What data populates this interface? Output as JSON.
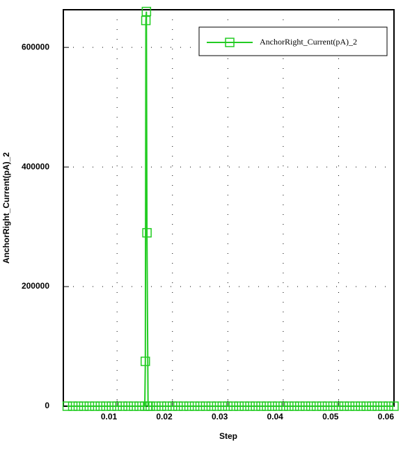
{
  "chart_data": {
    "type": "line",
    "x_label": "Step",
    "y_label": "AnchorRight_Current(pA)_2",
    "x": [
      0.001,
      0.002,
      0.003,
      0.004,
      0.005,
      0.006,
      0.007,
      0.008,
      0.009,
      0.01,
      0.011,
      0.012,
      0.013,
      0.014,
      0.015,
      0.0151,
      0.0152,
      0.0153,
      0.0154,
      0.0156,
      0.016,
      0.017,
      0.018,
      0.019,
      0.02,
      0.021,
      0.022,
      0.023,
      0.024,
      0.025,
      0.026,
      0.027,
      0.028,
      0.029,
      0.03,
      0.031,
      0.032,
      0.033,
      0.034,
      0.035,
      0.036,
      0.037,
      0.038,
      0.039,
      0.04,
      0.041,
      0.042,
      0.043,
      0.044,
      0.045,
      0.046,
      0.047,
      0.048,
      0.049,
      0.05,
      0.051,
      0.052,
      0.053,
      0.054,
      0.055,
      0.056,
      0.057,
      0.058,
      0.059,
      0.06
    ],
    "series": [
      {
        "name": "AnchorRight_Current(pA)_2",
        "color": "#22cc22",
        "values": [
          0,
          0,
          0,
          0,
          0,
          0,
          0,
          0,
          0,
          0,
          0,
          0,
          0,
          0,
          0,
          75000,
          645000,
          660000,
          290000,
          0,
          0,
          0,
          0,
          0,
          0,
          0,
          0,
          0,
          0,
          0,
          0,
          0,
          0,
          0,
          0,
          0,
          0,
          0,
          0,
          0,
          0,
          0,
          0,
          0,
          0,
          0,
          0,
          0,
          0,
          0,
          0,
          0,
          0,
          0,
          0,
          0,
          0,
          0,
          0,
          0,
          0,
          0,
          0,
          0,
          0
        ]
      }
    ],
    "xlim": [
      0.0003,
      0.06
    ],
    "ylim": [
      0,
      663000
    ],
    "xticks": [
      0.01,
      0.02,
      0.03,
      0.04,
      0.05,
      0.06
    ],
    "yticks": [
      0,
      200000,
      400000,
      600000
    ],
    "grid": true,
    "legend": "upper right"
  }
}
